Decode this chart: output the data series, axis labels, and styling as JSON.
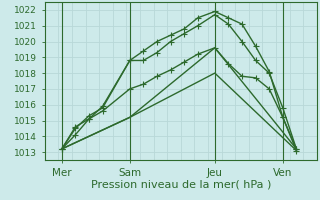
{
  "xlabel": "Pression niveau de la mer( hPa )",
  "bg_color": "#cdeaea",
  "grid_color": "#b8d8d8",
  "line_color": "#2d6a2d",
  "ylim": [
    1012.5,
    1022.5
  ],
  "xlim": [
    0,
    8
  ],
  "yticks": [
    1013,
    1014,
    1015,
    1016,
    1017,
    1018,
    1019,
    1020,
    1021,
    1022
  ],
  "xtick_labels": [
    "Mer",
    "Sam",
    "Jeu",
    "Ven"
  ],
  "xtick_positions": [
    0.5,
    2.5,
    5.0,
    7.0
  ],
  "vline_positions": [
    0.5,
    2.5,
    5.0,
    7.0
  ],
  "lines": [
    {
      "x": [
        0.5,
        0.9,
        1.3,
        1.7,
        2.5,
        2.9,
        3.3,
        3.7,
        4.1,
        4.5,
        5.0,
        5.4,
        5.8,
        6.2,
        6.6,
        7.0,
        7.4
      ],
      "y": [
        1013.2,
        1014.1,
        1015.1,
        1015.9,
        1018.8,
        1019.4,
        1020.0,
        1020.4,
        1020.8,
        1021.5,
        1021.9,
        1021.5,
        1021.1,
        1019.7,
        1018.1,
        1015.2,
        1013.1
      ]
    },
    {
      "x": [
        0.5,
        0.9,
        1.3,
        1.7,
        2.5,
        2.9,
        3.3,
        3.7,
        4.1,
        4.5,
        5.0,
        5.4,
        5.8,
        6.2,
        6.6,
        7.0,
        7.4
      ],
      "y": [
        1013.2,
        1014.5,
        1015.3,
        1015.8,
        1018.8,
        1018.8,
        1019.3,
        1020.0,
        1020.5,
        1021.0,
        1021.7,
        1021.1,
        1020.0,
        1018.8,
        1018.0,
        1015.8,
        1013.2
      ]
    },
    {
      "x": [
        0.5,
        0.9,
        1.3,
        1.7,
        2.5,
        2.9,
        3.3,
        3.7,
        4.1,
        4.5,
        5.0,
        5.4,
        5.8,
        6.2,
        6.6,
        7.0,
        7.4
      ],
      "y": [
        1013.2,
        1014.6,
        1015.1,
        1015.6,
        1017.0,
        1017.3,
        1017.8,
        1018.2,
        1018.7,
        1019.2,
        1019.6,
        1018.6,
        1017.8,
        1017.7,
        1017.0,
        1015.2,
        1013.2
      ]
    },
    {
      "x": [
        0.5,
        2.5,
        5.0,
        7.4
      ],
      "y": [
        1013.2,
        1015.2,
        1018.0,
        1013.1
      ]
    },
    {
      "x": [
        0.5,
        2.5,
        5.0,
        7.4
      ],
      "y": [
        1013.2,
        1015.2,
        1019.6,
        1013.2
      ]
    }
  ],
  "marker": "+",
  "markersize": 4,
  "linewidth": 1.0,
  "font_color": "#2d6a2d",
  "xlabel_fontsize": 8,
  "ytick_fontsize": 6.5,
  "xtick_fontsize": 7.5,
  "figsize": [
    3.2,
    2.0
  ],
  "dpi": 100
}
